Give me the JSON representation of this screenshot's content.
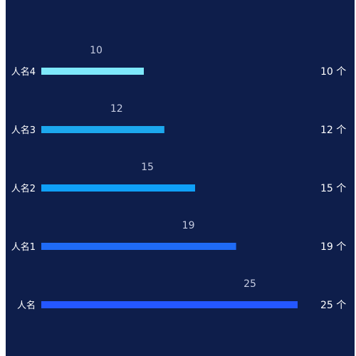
{
  "chart_data": {
    "type": "bar",
    "orientation": "horizontal",
    "categories": [
      "人名4",
      "人名3",
      "人名2",
      "人名1",
      "人名"
    ],
    "values": [
      10,
      12,
      15,
      19,
      25
    ],
    "right_labels": [
      "10 个",
      "12 个",
      "15 个",
      "19 个",
      "25 个"
    ],
    "bar_colors": [
      "#7ee8fb",
      "#1ca8ee",
      "#0fa0f7",
      "#1f6bf6",
      "#2457ff"
    ],
    "xlim": [
      0,
      25
    ],
    "grid": false,
    "legend": "none"
  },
  "colors": {
    "background": "#0e1e4b",
    "label_text": "#ffffff",
    "value_text": "#c5cbe0"
  }
}
